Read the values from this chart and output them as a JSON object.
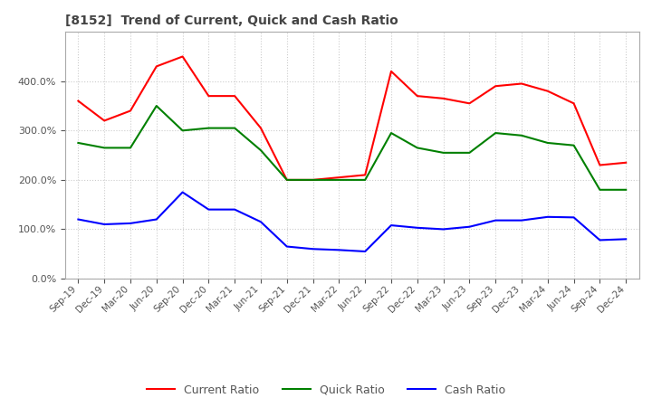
{
  "title": "[8152]  Trend of Current, Quick and Cash Ratio",
  "x_labels": [
    "Sep-19",
    "Dec-19",
    "Mar-20",
    "Jun-20",
    "Sep-20",
    "Dec-20",
    "Mar-21",
    "Jun-21",
    "Sep-21",
    "Dec-21",
    "Mar-22",
    "Jun-22",
    "Sep-22",
    "Dec-22",
    "Mar-23",
    "Jun-23",
    "Sep-23",
    "Dec-23",
    "Mar-24",
    "Jun-24",
    "Sep-24",
    "Dec-24"
  ],
  "current_ratio": [
    360,
    320,
    340,
    430,
    450,
    370,
    370,
    305,
    200,
    200,
    205,
    210,
    420,
    370,
    365,
    355,
    390,
    395,
    380,
    355,
    230,
    235
  ],
  "quick_ratio": [
    275,
    265,
    265,
    350,
    300,
    305,
    305,
    260,
    200,
    200,
    200,
    200,
    295,
    265,
    255,
    255,
    295,
    290,
    275,
    270,
    180,
    180
  ],
  "cash_ratio": [
    120,
    110,
    112,
    120,
    175,
    140,
    140,
    115,
    65,
    60,
    58,
    55,
    108,
    103,
    100,
    105,
    118,
    118,
    125,
    124,
    78,
    80
  ],
  "current_color": "#ff0000",
  "quick_color": "#008000",
  "cash_color": "#0000ff",
  "background_color": "#ffffff",
  "grid_color": "#cccccc",
  "ylim": [
    0,
    500
  ],
  "yticks": [
    0,
    100,
    200,
    300,
    400
  ],
  "legend_labels": [
    "Current Ratio",
    "Quick Ratio",
    "Cash Ratio"
  ]
}
